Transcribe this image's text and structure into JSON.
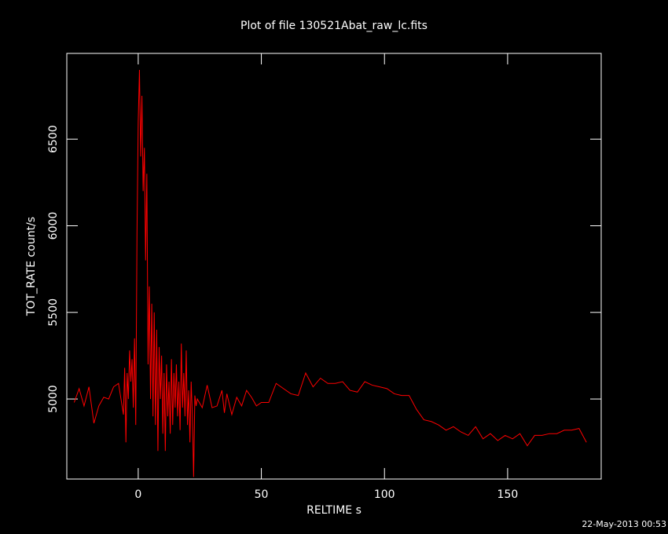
{
  "chart_data": {
    "type": "line",
    "title": "Plot of file 130521Abat_raw_lc.fits",
    "x_label": "RELTIME  s",
    "y_label": "TOT_RATE  count/s",
    "timestamp": "22-May-2013 00:53",
    "xlim": [
      -29,
      188
    ],
    "ylim": [
      4538,
      6995
    ],
    "xticks": [
      0,
      50,
      100,
      150
    ],
    "yticks": [
      5000,
      5500,
      6000,
      6500
    ],
    "x": [
      -26,
      -24,
      -22,
      -20,
      -18,
      -16,
      -14,
      -12,
      -10,
      -8,
      -6,
      -5.5,
      -5,
      -4.5,
      -4,
      -3.5,
      -3,
      -2.5,
      -2,
      -1.5,
      -1,
      -0.5,
      0,
      0.5,
      1,
      1.5,
      2,
      2.5,
      3,
      3.5,
      4,
      4.5,
      5,
      5.5,
      6,
      6.5,
      7,
      7.5,
      8,
      8.5,
      9,
      9.5,
      10,
      10.5,
      11,
      11.5,
      12,
      12.5,
      13,
      13.5,
      14,
      14.5,
      15,
      15.5,
      16,
      16.5,
      17,
      17.5,
      18,
      18.5,
      19,
      19.5,
      20,
      20.5,
      21,
      21.5,
      22,
      22.5,
      23,
      23.5,
      24,
      26,
      28,
      30,
      32,
      34,
      35,
      36,
      38,
      40,
      42,
      44,
      46,
      48,
      50,
      53,
      56,
      59,
      62,
      65,
      68,
      71,
      74,
      77,
      80,
      83,
      86,
      89,
      92,
      95,
      98,
      101,
      104,
      107,
      110,
      113,
      116,
      119,
      122,
      125,
      128,
      131,
      134,
      137,
      140,
      143,
      146,
      149,
      152,
      155,
      158,
      161,
      164,
      167,
      170,
      173,
      176,
      179,
      182
    ],
    "series": [
      {
        "name": "TOT_RATE",
        "color": "#ff0000",
        "values": [
          4980,
          5060,
          4960,
          5070,
          4860,
          4960,
          5010,
          5000,
          5070,
          5090,
          4910,
          5180,
          4750,
          5150,
          5000,
          5280,
          5100,
          5230,
          4950,
          5350,
          4850,
          5950,
          6600,
          6900,
          6400,
          6750,
          6200,
          6450,
          5800,
          6300,
          5200,
          5650,
          5000,
          5550,
          4900,
          5500,
          4850,
          5400,
          4700,
          5300,
          5000,
          5250,
          4800,
          5150,
          4700,
          5200,
          4900,
          5100,
          4800,
          5230,
          4850,
          5150,
          4950,
          5200,
          4900,
          5100,
          4820,
          5320,
          4950,
          5150,
          4900,
          5280,
          4850,
          5050,
          4750,
          5100,
          4900,
          4550,
          5020,
          4960,
          5000,
          4950,
          5080,
          4950,
          4960,
          5050,
          4920,
          5030,
          4910,
          5010,
          4960,
          5050,
          5010,
          4960,
          4980,
          4980,
          5090,
          5060,
          5030,
          5020,
          5150,
          5070,
          5120,
          5090,
          5090,
          5100,
          5050,
          5040,
          5100,
          5080,
          5070,
          5060,
          5030,
          5020,
          5020,
          4940,
          4880,
          4870,
          4850,
          4820,
          4840,
          4810,
          4790,
          4840,
          4770,
          4800,
          4760,
          4790,
          4770,
          4800,
          4730,
          4790,
          4790,
          4800,
          4800,
          4820,
          4820,
          4830,
          4750
        ]
      }
    ]
  }
}
